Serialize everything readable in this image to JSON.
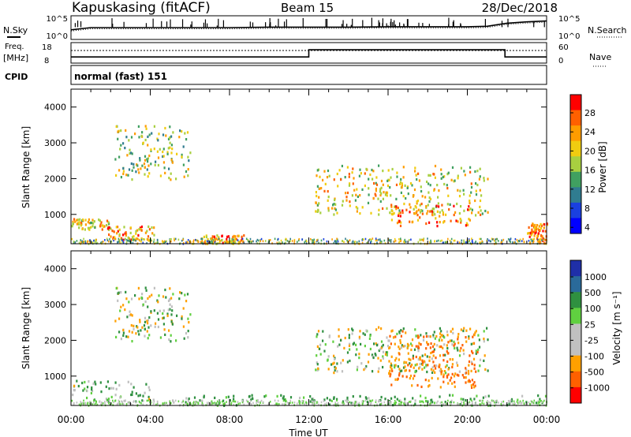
{
  "header": {
    "station": "Kapuskasing (fitACF)",
    "beam": "Beam 15",
    "date": "28/Dec/2018"
  },
  "side_labels": {
    "nsky": "N.Sky",
    "nsearch": "N.Search",
    "freq_line1": "Freq.",
    "freq_line2": "[MHz]",
    "nave": "Nave",
    "cpid": "CPID",
    "cpid_value": "normal (fast) 151"
  },
  "noise_axis": {
    "left_ticks": [
      "10^5",
      "10^0"
    ],
    "right_ticks": [
      "10^5",
      "10^0"
    ]
  },
  "freq_axis": {
    "left_ticks": [
      "18",
      "8"
    ],
    "right_ticks": [
      "60",
      "0"
    ]
  },
  "panels": {
    "power": {
      "ylabel": "Slant Range [km]",
      "colorbar_label": "Power [dB]",
      "colorbar_ticks": [
        "28",
        "24",
        "20",
        "16",
        "12",
        "8",
        "4"
      ]
    },
    "velocity": {
      "ylabel": "Slant Range [km]",
      "colorbar_label": "Velocity [m s⁻¹]",
      "colorbar_ticks": [
        "1000",
        "500",
        "100",
        "25",
        "-25",
        "-100",
        "-500",
        "-1000"
      ]
    }
  },
  "x_ticks": [
    "00:00",
    "04:00",
    "08:00",
    "12:00",
    "16:00",
    "20:00",
    "00:00"
  ],
  "xlabel": "Time UT",
  "y_ticks": [
    "4000",
    "3000",
    "2000",
    "1000"
  ],
  "colors": {
    "power_scale": [
      "#ff0000",
      "#ff6000",
      "#ff9c00",
      "#f0cc10",
      "#a8d040",
      "#40a060",
      "#307c90",
      "#1a40e0",
      "#0000ff"
    ],
    "velocity_scale": [
      "#1f2fa8",
      "#2a6a9a",
      "#2f9040",
      "#60d040",
      "#c0c0c0",
      "#c0c0c0",
      "#ffa000",
      "#ff6000",
      "#ff0000"
    ]
  },
  "chart_data": [
    {
      "type": "line",
      "title": "N.Sky",
      "x_unit": "hours UT",
      "x": [
        0,
        1,
        2,
        4,
        6,
        8,
        10,
        12,
        14,
        16,
        18,
        20,
        21,
        22,
        23,
        24
      ],
      "y": [
        2,
        2.5,
        2.5,
        2.5,
        2.5,
        2.5,
        2.6,
        2.6,
        2.6,
        2.7,
        2.7,
        2.7,
        2.8,
        3.5,
        3.8,
        4
      ],
      "y_scale": "log10",
      "ylim": [
        0,
        5
      ]
    },
    {
      "type": "line",
      "title": "Freq. [MHz]",
      "x": [
        0,
        12,
        12,
        21.9,
        21.9,
        24
      ],
      "y": [
        11,
        11,
        14.5,
        14.5,
        11,
        11
      ],
      "ylim": [
        8,
        18
      ]
    },
    {
      "type": "line",
      "title": "Nave",
      "x": [
        0,
        24
      ],
      "y": [
        37,
        37
      ],
      "ylim": [
        0,
        60
      ]
    },
    {
      "type": "heatmap",
      "title": "Power [dB]",
      "xlabel": "Time UT",
      "ylabel": "Slant Range [km]",
      "xlim": [
        0,
        24
      ],
      "ylim": [
        180,
        4500
      ],
      "clim": [
        0,
        30
      ],
      "regions": [
        {
          "t0": 2.2,
          "t1": 6.0,
          "r0": 2000,
          "r1": 3500,
          "mean": 15
        },
        {
          "t0": 0.0,
          "t1": 2.0,
          "r0": 600,
          "r1": 900,
          "mean": 20
        },
        {
          "t0": 1.8,
          "t1": 4.2,
          "r0": 300,
          "r1": 700,
          "mean": 22
        },
        {
          "t0": 6.5,
          "t1": 8.7,
          "r0": 200,
          "r1": 450,
          "mean": 22
        },
        {
          "t0": 12.3,
          "t1": 21.0,
          "r0": 1000,
          "r1": 2400,
          "mean": 18
        },
        {
          "t0": 16.0,
          "t1": 20.2,
          "r0": 700,
          "r1": 1300,
          "mean": 24
        },
        {
          "t0": 23.0,
          "t1": 24.0,
          "r0": 200,
          "r1": 800,
          "mean": 24
        }
      ]
    },
    {
      "type": "heatmap",
      "title": "Velocity [m s⁻¹]",
      "xlabel": "Time UT",
      "ylabel": "Slant Range [km]",
      "xlim": [
        0,
        24
      ],
      "ylim": [
        180,
        4500
      ],
      "clim": [
        -1000,
        1000
      ],
      "regions": [
        {
          "t0": 2.2,
          "t1": 6.0,
          "r0": 2000,
          "r1": 3500,
          "mean": 0
        },
        {
          "t0": 0.0,
          "t1": 4.2,
          "r0": 300,
          "r1": 900,
          "mean": 80
        },
        {
          "t0": 12.3,
          "t1": 21.0,
          "r0": 1100,
          "r1": 2400,
          "mean": 0
        },
        {
          "t0": 16.0,
          "t1": 20.5,
          "r0": 700,
          "r1": 2300,
          "mean": -300
        },
        {
          "t0": 5.0,
          "t1": 24.0,
          "r0": 200,
          "r1": 500,
          "mean": 100
        }
      ]
    }
  ]
}
